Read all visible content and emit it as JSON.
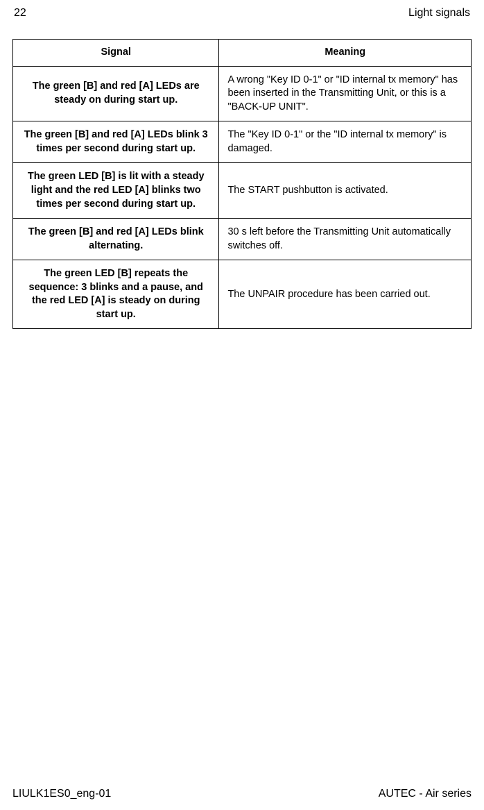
{
  "header": {
    "page_number": "22",
    "section_title": "Light signals"
  },
  "table": {
    "columns": [
      "Signal",
      "Meaning"
    ],
    "rows": [
      {
        "signal": "The green [B] and red [A] LEDs are steady on during start up.",
        "meaning": "A wrong \"Key ID 0-1\" or \"ID internal tx memory\" has been inserted in the Transmitting Unit, or this is a \"BACK-UP UNIT\"."
      },
      {
        "signal": "The green [B] and red [A] LEDs blink 3 times per second during start up.",
        "meaning": "The \"Key ID 0-1\" or the \"ID internal tx memory\" is damaged."
      },
      {
        "signal": "The green LED [B] is lit with a steady light and the red LED [A] blinks two times per second during start up.",
        "meaning": "The START pushbutton is activated."
      },
      {
        "signal": "The green [B] and red [A] LEDs blink alternating.",
        "meaning": "30 s left before the Transmitting Unit automatically switches off."
      },
      {
        "signal": "The green LED [B] repeats the sequence: 3 blinks and a pause, and the red LED [A] is steady on during start up.",
        "meaning": "The UNPAIR procedure has been carried out."
      }
    ]
  },
  "footer": {
    "doc_id": "LIULK1ES0_eng-01",
    "product": "AUTEC - Air series"
  }
}
